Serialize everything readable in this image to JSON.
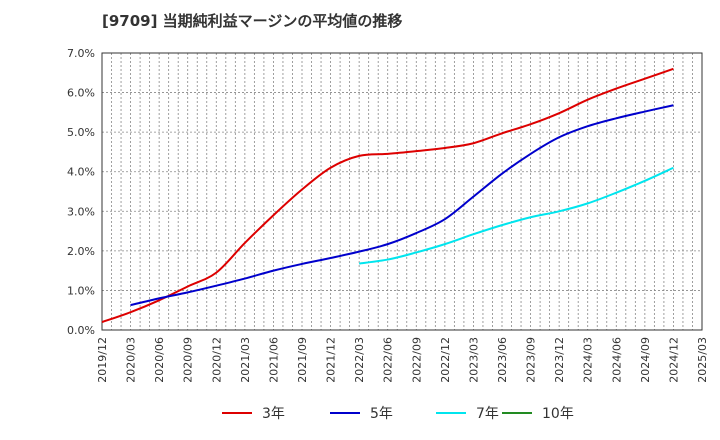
{
  "chart_data": {
    "type": "line",
    "title": "[9709]  当期純利益マージンの平均値の推移",
    "xlabel": "",
    "ylabel": "",
    "x": [
      "2019/12",
      "2020/03",
      "2020/06",
      "2020/09",
      "2020/12",
      "2021/03",
      "2021/06",
      "2021/09",
      "2021/12",
      "2022/03",
      "2022/06",
      "2022/09",
      "2022/12",
      "2023/03",
      "2023/06",
      "2023/09",
      "2023/12",
      "2024/03",
      "2024/06",
      "2024/09",
      "2024/12",
      "2025/03"
    ],
    "ylim": [
      0,
      7
    ],
    "yticks": [
      "0.0%",
      "1.0%",
      "2.0%",
      "3.0%",
      "4.0%",
      "5.0%",
      "6.0%",
      "7.0%"
    ],
    "grid": true,
    "legend_position": "bottom",
    "series": [
      {
        "name": "3年",
        "color": "#dd0000",
        "values": [
          0.2,
          0.45,
          0.75,
          1.1,
          1.45,
          2.2,
          2.9,
          3.55,
          4.1,
          4.4,
          4.45,
          4.52,
          4.6,
          4.72,
          4.97,
          5.2,
          5.48,
          5.82,
          6.1,
          6.35,
          6.6,
          null
        ]
      },
      {
        "name": "5年",
        "color": "#0000cc",
        "values": [
          null,
          0.63,
          0.8,
          0.95,
          1.12,
          1.3,
          1.5,
          1.67,
          1.82,
          1.98,
          2.17,
          2.45,
          2.8,
          3.37,
          3.95,
          4.45,
          4.87,
          5.15,
          5.35,
          5.52,
          5.68,
          null
        ]
      },
      {
        "name": "7年",
        "color": "#00e5ee",
        "values": [
          null,
          null,
          null,
          null,
          null,
          null,
          null,
          null,
          null,
          1.68,
          1.78,
          1.96,
          2.17,
          2.42,
          2.65,
          2.85,
          3.0,
          3.2,
          3.47,
          3.77,
          4.1,
          null
        ]
      },
      {
        "name": "10年",
        "color": "#228b22",
        "values": [
          null,
          null,
          null,
          null,
          null,
          null,
          null,
          null,
          null,
          null,
          null,
          null,
          null,
          null,
          null,
          null,
          null,
          null,
          null,
          null,
          null,
          null
        ]
      }
    ]
  }
}
